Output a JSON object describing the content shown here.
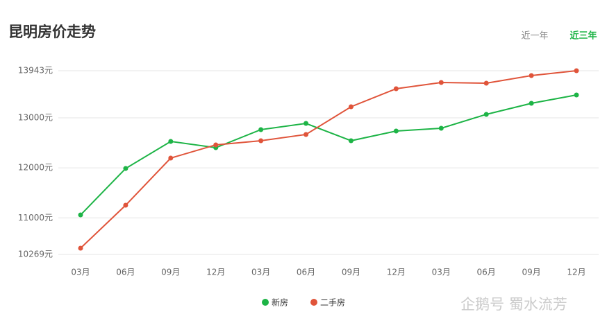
{
  "chart_data": {
    "type": "line",
    "title": "昆明房价走势",
    "categories": [
      "03月",
      "06月",
      "09月",
      "12月",
      "03月",
      "06月",
      "09月",
      "12月",
      "03月",
      "06月",
      "09月",
      "12月"
    ],
    "series": [
      {
        "name": "新房",
        "color": "#1db446",
        "values": [
          11059,
          11988,
          12529,
          12404,
          12765,
          12889,
          12543,
          12737,
          12792,
          13070,
          13291,
          13458
        ]
      },
      {
        "name": "二手房",
        "color": "#e0543a",
        "values": [
          10394,
          11253,
          12196,
          12460,
          12543,
          12668,
          13222,
          13583,
          13707,
          13693,
          13846,
          13943
        ]
      }
    ],
    "ylim": [
      10269,
      13943
    ],
    "yticks": [
      {
        "value": 10269,
        "label": "10269元"
      },
      {
        "value": 11000,
        "label": "11000元"
      },
      {
        "value": 12000,
        "label": "12000元"
      },
      {
        "value": 13000,
        "label": "13000元"
      },
      {
        "value": 13943,
        "label": "13943元"
      }
    ],
    "grid": true
  },
  "tabs": [
    "近一年",
    "近三年"
  ],
  "watermark": "企鹅号 蜀水流芳"
}
